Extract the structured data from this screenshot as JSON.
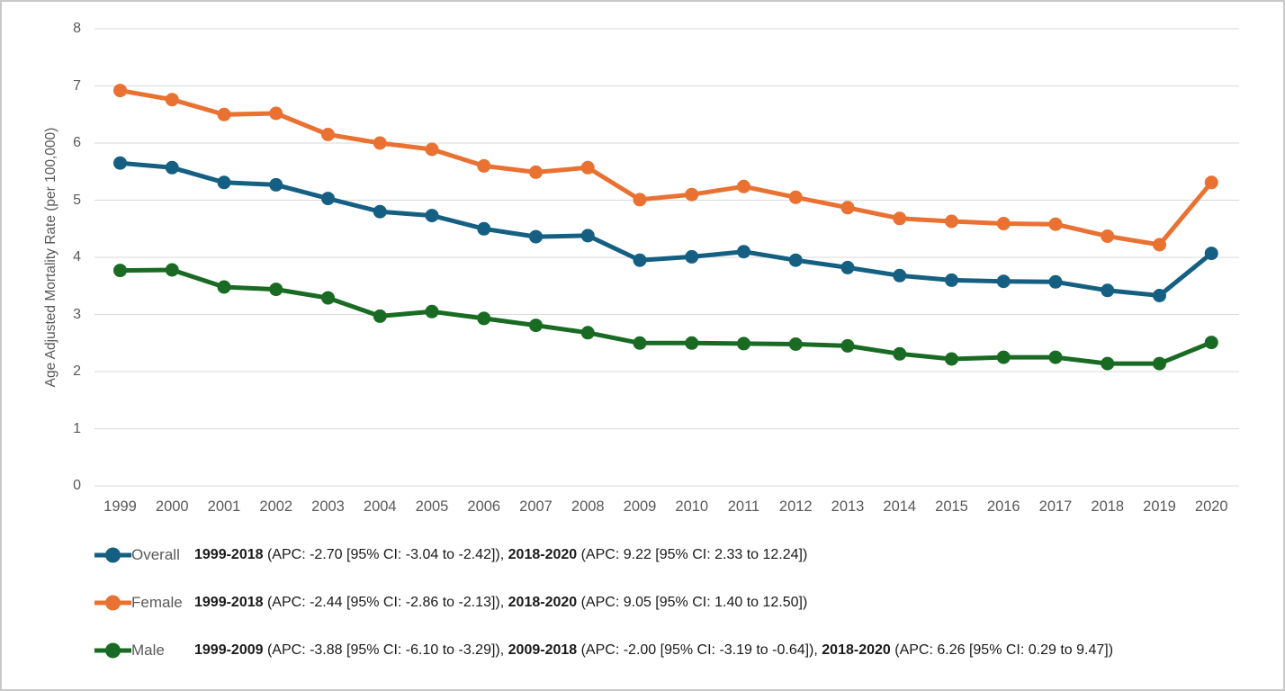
{
  "colors": {
    "background": "#FFFFFF",
    "border": "#C9C9C9",
    "grid": "#D9D9D9",
    "axis_text": "#595959",
    "annotation_text": "#1A1A1A",
    "overall": "#156082",
    "female": "#E97132",
    "male": "#196B24"
  },
  "chart_data": {
    "type": "line",
    "title": "",
    "xlabel": "",
    "ylabel": "Age Adjusted Mortality Rate (per 100,000)",
    "ylim": [
      0,
      8
    ],
    "yticks": [
      0,
      1,
      2,
      3,
      4,
      5,
      6,
      7,
      8
    ],
    "grid": "horizontal",
    "legend_position": "bottom-left",
    "categories": [
      "1999",
      "2000",
      "2001",
      "2002",
      "2003",
      "2004",
      "2005",
      "2006",
      "2007",
      "2008",
      "2009",
      "2010",
      "2011",
      "2012",
      "2013",
      "2014",
      "2015",
      "2016",
      "2017",
      "2018",
      "2019",
      "2020"
    ],
    "series": [
      {
        "name": "Overall",
        "color": "#156082",
        "values": [
          5.65,
          5.57,
          5.31,
          5.27,
          5.03,
          4.8,
          4.73,
          4.5,
          4.36,
          4.38,
          3.95,
          4.01,
          4.1,
          3.95,
          3.82,
          3.68,
          3.6,
          3.58,
          3.57,
          3.42,
          3.33,
          4.07
        ]
      },
      {
        "name": "Female",
        "color": "#E97132",
        "values": [
          6.92,
          6.76,
          6.5,
          6.52,
          6.15,
          6.0,
          5.89,
          5.6,
          5.49,
          5.57,
          5.01,
          5.1,
          5.24,
          5.05,
          4.87,
          4.68,
          4.63,
          4.59,
          4.58,
          4.37,
          4.22,
          5.31
        ]
      },
      {
        "name": "Male",
        "color": "#196B24",
        "values": [
          3.77,
          3.78,
          3.48,
          3.44,
          3.29,
          2.97,
          3.05,
          2.93,
          2.81,
          2.68,
          2.5,
          2.5,
          2.49,
          2.48,
          2.45,
          2.31,
          2.22,
          2.25,
          2.25,
          2.14,
          2.14,
          2.51
        ]
      }
    ],
    "legend": [
      {
        "label": "Overall",
        "color": "#156082",
        "segments": [
          {
            "bold": "1999-2018",
            "rest": " (APC: -2.70 [95% CI: -3.04 to -2.42]), "
          },
          {
            "bold": "2018-2020",
            "rest": " (APC: 9.22 [95% CI: 2.33 to 12.24])"
          }
        ]
      },
      {
        "label": "Female",
        "color": "#E97132",
        "segments": [
          {
            "bold": "1999-2018",
            "rest": " (APC: -2.44 [95% CI: -2.86 to -2.13]), "
          },
          {
            "bold": "2018-2020",
            "rest": " (APC: 9.05 [95% CI: 1.40 to 12.50])"
          }
        ]
      },
      {
        "label": "Male",
        "color": "#196B24",
        "segments": [
          {
            "bold": "1999-2009",
            "rest": " (APC: -3.88 [95% CI: -6.10 to -3.29]), "
          },
          {
            "bold": "2009-2018",
            "rest": " (APC: -2.00 [95% CI: -3.19 to -0.64]), "
          },
          {
            "bold": "2018-2020",
            "rest": " (APC: 6.26 [95% CI: 0.29 to 9.47])"
          }
        ]
      }
    ]
  }
}
